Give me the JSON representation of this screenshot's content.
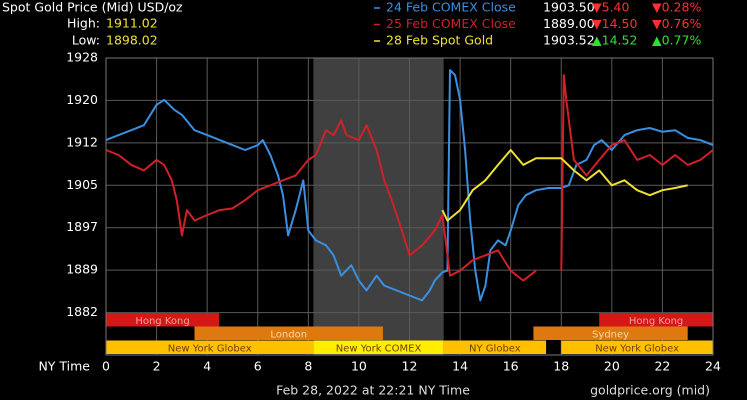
{
  "chart_data": {
    "type": "line",
    "title": "Spot Gold Price (Mid) USD/oz",
    "high_label": "High:",
    "high": 1911.02,
    "low_label": "Low:",
    "low": 1898.02,
    "x_label": "NY Time",
    "footer": "Feb 28, 2022 at 22:21 NY Time",
    "source": "goldprice.org (mid)",
    "xlim": [
      0,
      24
    ],
    "xticks": [
      0,
      2,
      4,
      6,
      8,
      10,
      12,
      14,
      16,
      18,
      20,
      22,
      24
    ],
    "ylim": [
      1873.9,
      1927.8
    ],
    "yticks": [
      {
        "value": 1881.6,
        "label": "1882"
      },
      {
        "value": 1889.3,
        "label": "1889"
      },
      {
        "value": 1897.0,
        "label": "1897"
      },
      {
        "value": 1904.7,
        "label": "1905"
      },
      {
        "value": 1912.4,
        "label": "1912"
      },
      {
        "value": 1920.1,
        "label": "1920"
      },
      {
        "value": 1927.8,
        "label": "1928"
      }
    ],
    "grid": true,
    "shaded_region": [
      8.2,
      13.35
    ],
    "series": [
      {
        "name": "24 Feb COMEX Close",
        "color": "#3a8fe0",
        "close": "1903.50",
        "change": "▼5.40",
        "pct": "▼0.28%",
        "change_color": "#ff3030",
        "x": [
          0,
          0.5,
          1,
          1.5,
          2,
          2.3,
          2.7,
          3,
          3.5,
          4,
          4.5,
          5,
          5.5,
          6,
          6.2,
          6.5,
          6.8,
          7,
          7.2,
          7.5,
          7.8,
          8,
          8.3,
          8.7,
          9,
          9.3,
          9.7,
          10,
          10.3,
          10.7,
          11,
          11.5,
          12,
          12.5,
          12.8,
          13,
          13.3,
          13.5,
          13.6,
          13.8,
          14,
          14.2,
          14.4,
          14.6,
          14.8,
          15,
          15.2,
          15.5,
          15.8,
          16,
          16.3,
          16.6,
          17,
          17.5,
          18,
          18.3,
          18.6,
          19,
          19.3,
          19.6,
          20,
          20.5,
          21,
          21.5,
          22,
          22.5,
          23,
          23.5,
          24
        ],
        "values": [
          1912.9,
          1913.8,
          1914.7,
          1915.6,
          1919.3,
          1920.2,
          1918.4,
          1917.5,
          1914.7,
          1913.8,
          1912.9,
          1912.0,
          1911.1,
          1912.0,
          1912.9,
          1910.2,
          1906.5,
          1902.9,
          1895.6,
          1900.2,
          1905.6,
          1896.5,
          1894.7,
          1893.8,
          1892.0,
          1888.3,
          1890.2,
          1887.4,
          1885.6,
          1888.3,
          1886.5,
          1885.6,
          1884.7,
          1883.8,
          1885.6,
          1887.4,
          1888.9,
          1889.2,
          1925.6,
          1924.7,
          1920.2,
          1911.1,
          1898.3,
          1889.2,
          1883.8,
          1886.5,
          1892.9,
          1894.7,
          1893.8,
          1896.5,
          1901.1,
          1902.9,
          1903.8,
          1904.2,
          1904.2,
          1904.7,
          1908.4,
          1909.3,
          1912.0,
          1912.9,
          1911.1,
          1913.8,
          1914.7,
          1915.1,
          1914.4,
          1914.7,
          1913.3,
          1912.9,
          1912.0
        ]
      },
      {
        "name": "25 Feb COMEX Close",
        "color": "#d0202a",
        "close": "1889.00",
        "change": "▼14.50",
        "pct": "▼0.76%",
        "change_color": "#ff3030",
        "x": [
          0,
          0.5,
          1,
          1.5,
          2,
          2.3,
          2.6,
          2.8,
          3,
          3.2,
          3.5,
          4,
          4.5,
          5,
          5.5,
          6,
          6.5,
          7,
          7.5,
          8,
          8.3,
          8.7,
          9,
          9.3,
          9.5,
          10,
          10.3,
          10.7,
          11,
          11.3,
          11.7,
          12,
          12.5,
          13,
          13.3,
          13.6,
          14,
          14.5,
          15,
          15.5,
          16,
          16.5,
          17,
          17.5,
          18,
          18.1,
          18.2,
          18.5,
          19,
          19.5,
          20,
          20.5,
          21,
          21.5,
          22,
          22.5,
          23,
          23.5,
          24
        ],
        "values": [
          1911.1,
          1910.2,
          1908.4,
          1907.4,
          1909.3,
          1908.4,
          1905.6,
          1902.0,
          1895.6,
          1900.2,
          1898.3,
          1899.3,
          1900.2,
          1900.5,
          1902.0,
          1903.8,
          1904.7,
          1905.6,
          1906.5,
          1909.3,
          1910.2,
          1914.7,
          1913.8,
          1916.5,
          1913.8,
          1912.9,
          1915.6,
          1911.1,
          1905.6,
          1902.0,
          1896.5,
          1892.0,
          1893.8,
          1896.5,
          1899.3,
          1888.3,
          1889.2,
          1891.1,
          1892.0,
          1892.9,
          1889.2,
          1887.4,
          1889.2,
          null,
          1889.2,
          1924.7,
          1920.2,
          1909.3,
          1906.5,
          1909.3,
          1912.0,
          1912.9,
          1909.3,
          1910.2,
          1908.4,
          1910.2,
          1908.4,
          1909.3,
          1911.1
        ]
      },
      {
        "name": "28 Feb Spot Gold",
        "color": "#f0e030",
        "close": "1903.52",
        "change": "▲14.52",
        "pct": "▲0.77%",
        "change_color": "#30e030",
        "x": [
          13.3,
          13.5,
          14,
          14.5,
          15,
          15.5,
          16,
          16.5,
          17,
          17.5,
          18,
          18.5,
          19,
          19.5,
          20,
          20.5,
          21,
          21.5,
          22,
          22.5,
          23
        ],
        "values": [
          1900.2,
          1898.3,
          1900.2,
          1903.8,
          1905.6,
          1908.4,
          1911.1,
          1908.4,
          1909.6,
          1909.6,
          1909.6,
          1907.4,
          1905.6,
          1907.4,
          1904.7,
          1905.6,
          1903.8,
          1902.9,
          1903.8,
          1904.2,
          1904.7
        ]
      }
    ],
    "sessions": [
      [
        {
          "name": "Hong Kong",
          "start": 0,
          "end": 4.47,
          "color": "#d41818",
          "text_color": "#f0a0a0"
        },
        {
          "name": "Hong Kong",
          "start": 19.5,
          "end": 24,
          "color": "#d41818",
          "text_color": "#f0a0a0"
        }
      ],
      [
        {
          "name": "London",
          "start": 3.5,
          "end": 10.95,
          "color": "#e07810",
          "text_color": "#f8d8a0"
        },
        {
          "name": "Sydney",
          "start": 16.9,
          "end": 23,
          "color": "#e07810",
          "text_color": "#f8d8a0"
        }
      ],
      [
        {
          "name": "New York Globex",
          "start": 0,
          "end": 8.2,
          "color": "#ffc000",
          "text_color": "#704000"
        },
        {
          "name": "New York COMEX",
          "start": 8.2,
          "end": 13.35,
          "color": "#ffee00",
          "text_color": "#704000"
        },
        {
          "name": "NY Globex",
          "start": 13.35,
          "end": 17.4,
          "color": "#ffc000",
          "text_color": "#704000"
        },
        {
          "name": "New York Globex",
          "start": 18,
          "end": 24,
          "color": "#ffc000",
          "text_color": "#704000"
        }
      ]
    ]
  }
}
